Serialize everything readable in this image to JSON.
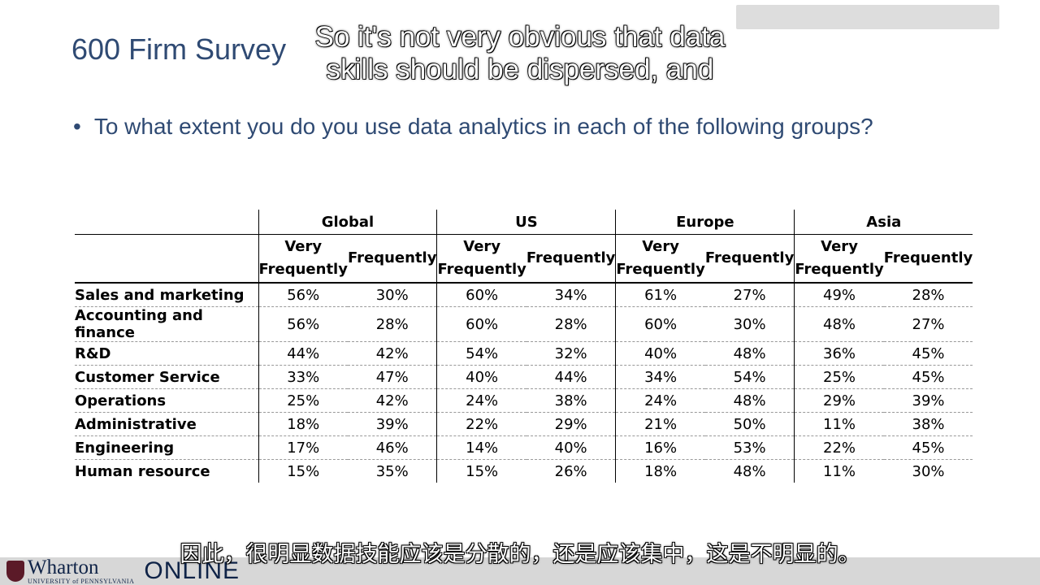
{
  "slide": {
    "title": "600 Firm Survey",
    "bullet": "To what extent you do you use data analytics in each of the following groups?",
    "bullet_symbol": "•"
  },
  "captions": {
    "english": "So it's not very obvious that data skills should be dispersed, and",
    "chinese": "因此，很明显数据技能应该是分散的，还是应该集中，这是不明显的。"
  },
  "table": {
    "regions": [
      "Global",
      "US",
      "Europe",
      "Asia"
    ],
    "subheaders": {
      "very_line1": "Very",
      "very_line2": "Frequently",
      "frequently": "Frequently"
    },
    "rows": [
      {
        "label": "Sales and marketing",
        "values": [
          "56%",
          "30%",
          "60%",
          "34%",
          "61%",
          "27%",
          "49%",
          "28%"
        ]
      },
      {
        "label": "Accounting and finance",
        "values": [
          "56%",
          "28%",
          "60%",
          "28%",
          "60%",
          "30%",
          "48%",
          "27%"
        ]
      },
      {
        "label": "R&D",
        "values": [
          "44%",
          "42%",
          "54%",
          "32%",
          "40%",
          "48%",
          "36%",
          "45%"
        ]
      },
      {
        "label": "Customer Service",
        "values": [
          "33%",
          "47%",
          "40%",
          "44%",
          "34%",
          "54%",
          "25%",
          "45%"
        ]
      },
      {
        "label": "Operations",
        "values": [
          "25%",
          "42%",
          "24%",
          "38%",
          "24%",
          "48%",
          "29%",
          "39%"
        ]
      },
      {
        "label": "Administrative",
        "values": [
          "18%",
          "39%",
          "22%",
          "29%",
          "21%",
          "50%",
          "11%",
          "38%"
        ]
      },
      {
        "label": "Engineering",
        "values": [
          "17%",
          "46%",
          "14%",
          "40%",
          "16%",
          "53%",
          "22%",
          "45%"
        ]
      },
      {
        "label": "Human resource",
        "values": [
          "15%",
          "35%",
          "15%",
          "26%",
          "18%",
          "48%",
          "11%",
          "30%"
        ]
      }
    ]
  },
  "footer": {
    "logo_name": "Wharton",
    "logo_sub": "UNIVERSITY of PENNSYLVANIA",
    "logo_online": "ONLINE"
  },
  "colors": {
    "title_blue": "#2f4a73",
    "footer_gray": "#d7d7d7",
    "logo_navy": "#0f2347"
  }
}
